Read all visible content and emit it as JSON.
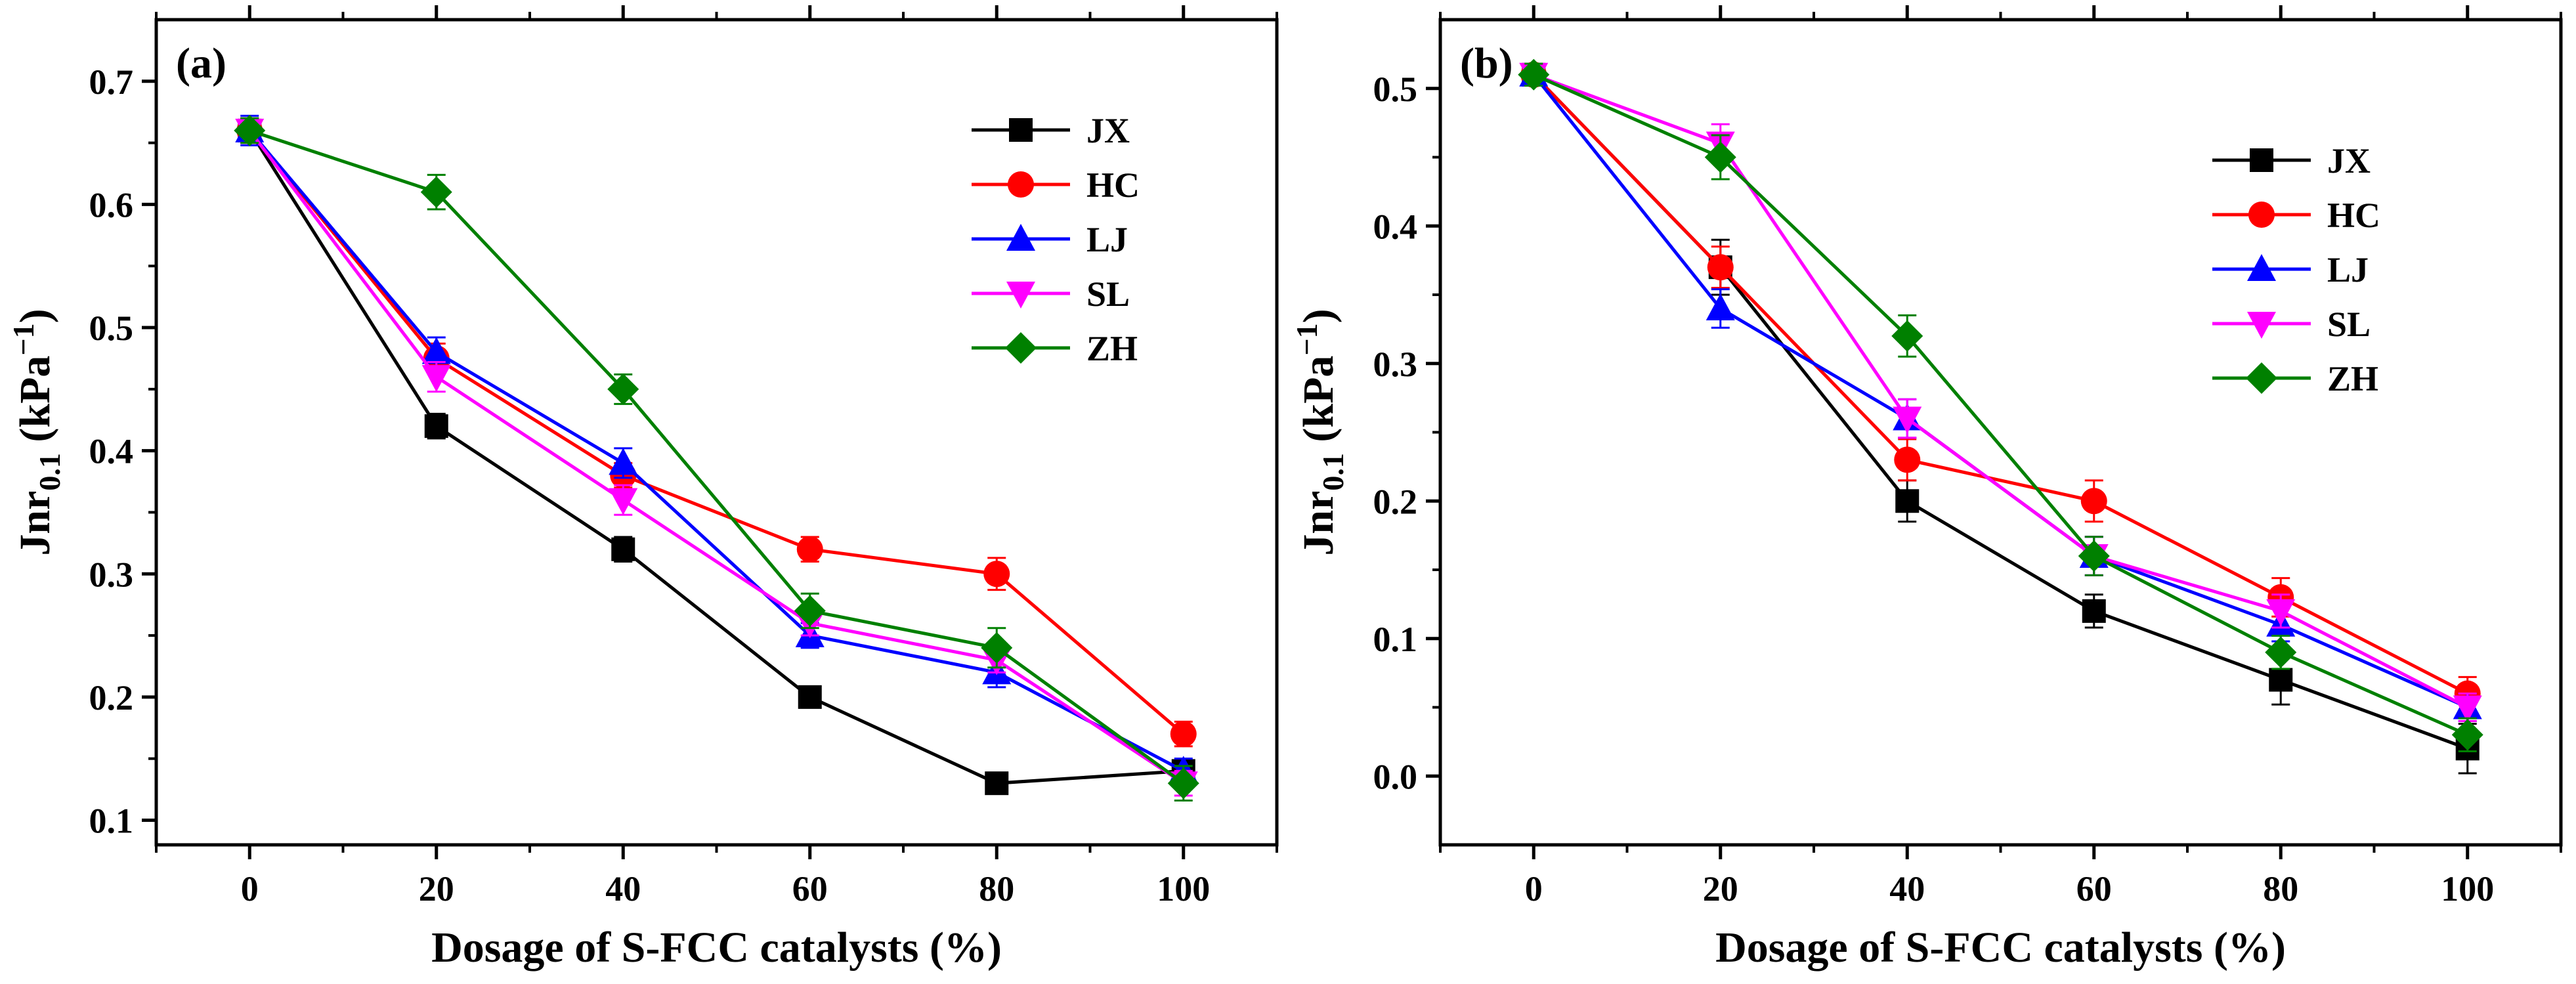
{
  "chart_data": [
    {
      "type": "line",
      "panel_label": "(a)",
      "xlabel": "Dosage of S-FCC catalysts (%)",
      "ylabel": "Jnr",
      "ylabel_sub": "0.1",
      "ylabel_unit_open": " (kPa",
      "ylabel_unit_sup": "−1",
      "ylabel_unit_close": ")",
      "xlim": [
        -10,
        110
      ],
      "ylim": [
        0.08,
        0.75
      ],
      "x": [
        0,
        20,
        40,
        60,
        80,
        100
      ],
      "x_tick_labels": [
        "0",
        "20",
        "40",
        "60",
        "80",
        "100"
      ],
      "y_ticks": [
        0.1,
        0.2,
        0.3,
        0.4,
        0.5,
        0.6,
        0.7
      ],
      "y_tick_labels": [
        "0.1",
        "0.2",
        "0.3",
        "0.4",
        "0.5",
        "0.6",
        "0.7"
      ],
      "error_bars": true,
      "legend_position": "top-right",
      "series": [
        {
          "name": "JX",
          "color": "#000000",
          "marker": "square",
          "values": [
            0.66,
            0.42,
            0.32,
            0.2,
            0.13,
            0.14
          ],
          "errors": [
            0.01,
            0.01,
            0.01,
            0.008,
            0.006,
            0.008
          ]
        },
        {
          "name": "HC",
          "color": "#ff0000",
          "marker": "circle",
          "values": [
            0.66,
            0.475,
            0.38,
            0.32,
            0.3,
            0.17
          ],
          "errors": [
            0.01,
            0.012,
            0.01,
            0.01,
            0.013,
            0.01
          ]
        },
        {
          "name": "LJ",
          "color": "#0000ff",
          "marker": "triangle-up",
          "values": [
            0.66,
            0.48,
            0.39,
            0.25,
            0.22,
            0.14
          ],
          "errors": [
            0.012,
            0.012,
            0.012,
            0.01,
            0.012,
            0.01
          ]
        },
        {
          "name": "SL",
          "color": "#ff00ff",
          "marker": "triangle-down",
          "values": [
            0.66,
            0.46,
            0.36,
            0.26,
            0.23,
            0.13
          ],
          "errors": [
            0.01,
            0.012,
            0.012,
            0.01,
            0.01,
            0.01
          ]
        },
        {
          "name": "ZH",
          "color": "#008000",
          "marker": "diamond",
          "values": [
            0.66,
            0.61,
            0.45,
            0.27,
            0.24,
            0.13
          ],
          "errors": [
            0.01,
            0.014,
            0.012,
            0.014,
            0.016,
            0.014
          ]
        }
      ]
    },
    {
      "type": "line",
      "panel_label": "(b)",
      "xlabel": "Dosage of S-FCC catalysts (%)",
      "ylabel": "Jnr",
      "ylabel_sub": "0.1",
      "ylabel_unit_open": " (kPa",
      "ylabel_unit_sup": "−1",
      "ylabel_unit_close": ")",
      "xlim": [
        -10,
        110
      ],
      "ylim": [
        -0.05,
        0.55
      ],
      "x": [
        0,
        20,
        40,
        60,
        80,
        100
      ],
      "x_tick_labels": [
        "0",
        "20",
        "40",
        "60",
        "80",
        "100"
      ],
      "y_ticks": [
        0.0,
        0.1,
        0.2,
        0.3,
        0.4,
        0.5
      ],
      "y_tick_labels": [
        "0.0",
        "0.1",
        "0.2",
        "0.3",
        "0.4",
        "0.5"
      ],
      "error_bars": true,
      "legend_position": "top-right",
      "series": [
        {
          "name": "JX",
          "color": "#000000",
          "marker": "square",
          "values": [
            0.51,
            0.37,
            0.2,
            0.12,
            0.07,
            0.02
          ],
          "errors": [
            0.008,
            0.02,
            0.015,
            0.012,
            0.018,
            0.018
          ]
        },
        {
          "name": "HC",
          "color": "#ff0000",
          "marker": "circle",
          "values": [
            0.51,
            0.37,
            0.23,
            0.2,
            0.13,
            0.06
          ],
          "errors": [
            0.008,
            0.015,
            0.015,
            0.015,
            0.014,
            0.012
          ]
        },
        {
          "name": "LJ",
          "color": "#0000ff",
          "marker": "triangle-up",
          "values": [
            0.51,
            0.34,
            0.26,
            0.16,
            0.11,
            0.05
          ],
          "errors": [
            0.008,
            0.014,
            0.014,
            0.014,
            0.012,
            0.01
          ]
        },
        {
          "name": "SL",
          "color": "#ff00ff",
          "marker": "triangle-down",
          "values": [
            0.51,
            0.46,
            0.26,
            0.16,
            0.12,
            0.05
          ],
          "errors": [
            0.008,
            0.014,
            0.014,
            0.014,
            0.012,
            0.01
          ]
        },
        {
          "name": "ZH",
          "color": "#008000",
          "marker": "diamond",
          "values": [
            0.51,
            0.45,
            0.32,
            0.16,
            0.09,
            0.03
          ],
          "errors": [
            0.008,
            0.016,
            0.015,
            0.014,
            0.012,
            0.012
          ]
        }
      ]
    }
  ]
}
